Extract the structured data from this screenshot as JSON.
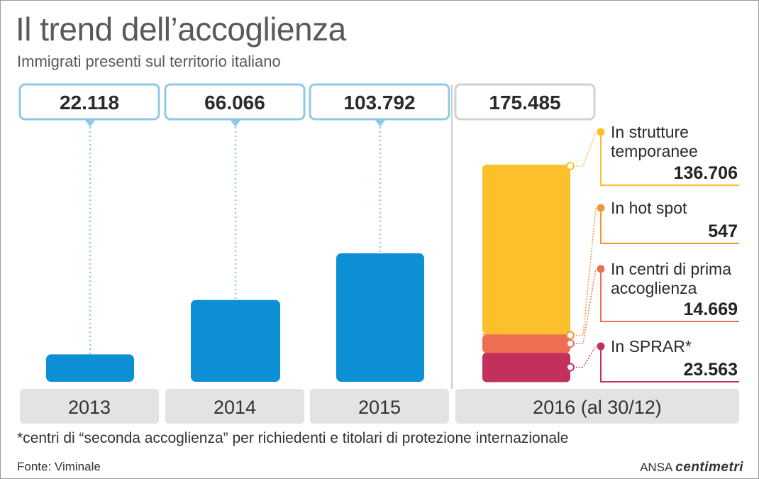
{
  "header": {
    "title": "Il trend dell’accoglienza",
    "subtitle": "Immigrati presenti sul territorio italiano"
  },
  "colors": {
    "bar_blue": "#0c8fd5",
    "box_border": "#8fc9e6",
    "box_border_2016": "#d2d2d2",
    "year_bg": "#e2e3e4",
    "strutture": "#fcc02b",
    "hotspot": "#f2953a",
    "prima": "#ee6e52",
    "sprar": "#c4305e"
  },
  "chart_data": {
    "type": "bar",
    "categories": [
      "2013",
      "2014",
      "2015",
      "2016 (al 30/12)"
    ],
    "totals": [
      "22.118",
      "66.066",
      "103.792",
      "175.485"
    ],
    "values": [
      22118,
      66066,
      103792,
      175485
    ],
    "stack_2016": [
      {
        "name": "In strutture temporanee",
        "label": "136.706",
        "value": 136706,
        "color": "#fcc02b"
      },
      {
        "name": "In hot spot",
        "label": "547",
        "value": 547,
        "color": "#f2953a"
      },
      {
        "name": "In centri di prima accoglienza",
        "label": "14.669",
        "value": 14669,
        "color": "#ee6e52"
      },
      {
        "name": "In SPRAR*",
        "label": "23.563",
        "value": 23563,
        "color": "#c4305e"
      }
    ],
    "ylim": [
      0,
      175485
    ]
  },
  "footnote": "*centri di “seconda accoglienza” per richiedenti e titolari di protezione internazionale",
  "source": "Fonte: Viminale",
  "credit_prefix": "ANSA",
  "credit_brand": "centimetri"
}
